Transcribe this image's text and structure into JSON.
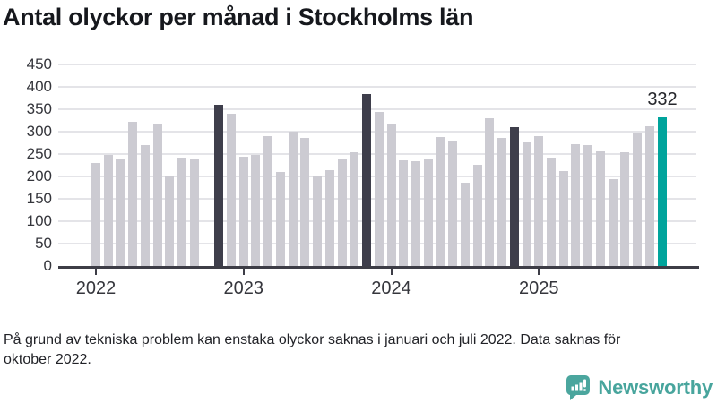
{
  "title": "Antal olyckor per månad i Stockholms län",
  "latest_value_label": "332",
  "footnote": {
    "line1": "På grund av tekniska problem kan enstaka olyckor saknas i januari och juli 2022. Data saknas för",
    "line2": "oktober 2022."
  },
  "logo": {
    "text": "Newsworthy",
    "icon": "newsworthy-speech-bubble-bar-chart-icon"
  },
  "colors": {
    "bar_default": "#cccbd2",
    "bar_highlight": "#3e3e4b",
    "bar_latest": "#00a49c",
    "gridline": "#e4e4e8",
    "axis": "#3d3d46",
    "title_text": "#16181d",
    "logo_teal": "#48a59d"
  },
  "chart_data": {
    "type": "bar",
    "title": "Antal olyckor per månad i Stockholms län",
    "xlabel": "",
    "ylabel": "",
    "ylim": [
      0,
      450
    ],
    "y_ticks": [
      0,
      50,
      100,
      150,
      200,
      250,
      300,
      350,
      400,
      450
    ],
    "x_tick_labels": [
      "2022",
      "2023",
      "2024",
      "2025"
    ],
    "grid": "horizontal",
    "legend": "none",
    "missing_data": [
      "2022-10"
    ],
    "highlight_note": "November of each year shown dark; latest month teal with data label 332",
    "series": [
      {
        "name": "Antal olyckor",
        "points": [
          {
            "month": "2022-01",
            "value": 230,
            "style": "default"
          },
          {
            "month": "2022-02",
            "value": 249,
            "style": "default"
          },
          {
            "month": "2022-03",
            "value": 238,
            "style": "default"
          },
          {
            "month": "2022-04",
            "value": 322,
            "style": "default"
          },
          {
            "month": "2022-05",
            "value": 270,
            "style": "default"
          },
          {
            "month": "2022-06",
            "value": 317,
            "style": "default"
          },
          {
            "month": "2022-07",
            "value": 200,
            "style": "default"
          },
          {
            "month": "2022-08",
            "value": 242,
            "style": "default"
          },
          {
            "month": "2022-09",
            "value": 241,
            "style": "default"
          },
          {
            "month": "2022-10",
            "value": null,
            "style": "missing"
          },
          {
            "month": "2022-11",
            "value": 361,
            "style": "highlight"
          },
          {
            "month": "2022-12",
            "value": 340,
            "style": "default"
          },
          {
            "month": "2023-01",
            "value": 244,
            "style": "default"
          },
          {
            "month": "2023-02",
            "value": 248,
            "style": "default"
          },
          {
            "month": "2023-03",
            "value": 290,
            "style": "default"
          },
          {
            "month": "2023-04",
            "value": 210,
            "style": "default"
          },
          {
            "month": "2023-05",
            "value": 301,
            "style": "default"
          },
          {
            "month": "2023-06",
            "value": 287,
            "style": "default"
          },
          {
            "month": "2023-07",
            "value": 202,
            "style": "default"
          },
          {
            "month": "2023-08",
            "value": 214,
            "style": "default"
          },
          {
            "month": "2023-09",
            "value": 240,
            "style": "default"
          },
          {
            "month": "2023-10",
            "value": 255,
            "style": "default"
          },
          {
            "month": "2023-11",
            "value": 385,
            "style": "highlight"
          },
          {
            "month": "2023-12",
            "value": 345,
            "style": "default"
          },
          {
            "month": "2024-01",
            "value": 317,
            "style": "default"
          },
          {
            "month": "2024-02",
            "value": 236,
            "style": "default"
          },
          {
            "month": "2024-03",
            "value": 234,
            "style": "default"
          },
          {
            "month": "2024-04",
            "value": 240,
            "style": "default"
          },
          {
            "month": "2024-05",
            "value": 289,
            "style": "default"
          },
          {
            "month": "2024-06",
            "value": 278,
            "style": "default"
          },
          {
            "month": "2024-07",
            "value": 187,
            "style": "default"
          },
          {
            "month": "2024-08",
            "value": 227,
            "style": "default"
          },
          {
            "month": "2024-09",
            "value": 331,
            "style": "default"
          },
          {
            "month": "2024-10",
            "value": 286,
            "style": "default"
          },
          {
            "month": "2024-11",
            "value": 311,
            "style": "highlight"
          },
          {
            "month": "2024-12",
            "value": 276,
            "style": "default"
          },
          {
            "month": "2025-01",
            "value": 291,
            "style": "default"
          },
          {
            "month": "2025-02",
            "value": 243,
            "style": "default"
          },
          {
            "month": "2025-03",
            "value": 213,
            "style": "default"
          },
          {
            "month": "2025-04",
            "value": 272,
            "style": "default"
          },
          {
            "month": "2025-05",
            "value": 271,
            "style": "default"
          },
          {
            "month": "2025-06",
            "value": 257,
            "style": "default"
          },
          {
            "month": "2025-07",
            "value": 195,
            "style": "default"
          },
          {
            "month": "2025-08",
            "value": 255,
            "style": "default"
          },
          {
            "month": "2025-09",
            "value": 298,
            "style": "default"
          },
          {
            "month": "2025-10",
            "value": 313,
            "style": "default"
          },
          {
            "month": "2025-11",
            "value": 332,
            "style": "latest"
          }
        ]
      }
    ]
  }
}
